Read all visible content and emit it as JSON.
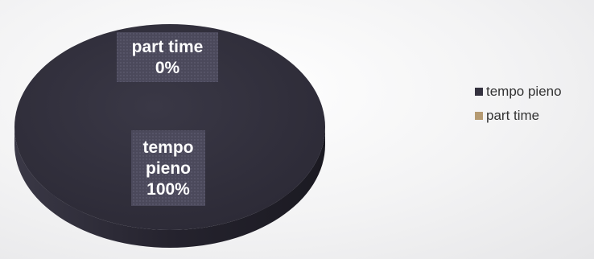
{
  "chart_data": {
    "type": "pie",
    "style": "3d",
    "categories": [
      "tempo pieno",
      "part time"
    ],
    "values": [
      100,
      0
    ],
    "value_unit": "%",
    "data_labels": [
      {
        "category": "tempo pieno",
        "category_text": [
          "tempo",
          "pieno"
        ],
        "value_text": "100%"
      },
      {
        "category": "part time",
        "category_text": [
          "part time"
        ],
        "value_text": "0%"
      }
    ],
    "colors": [
      "#34323f",
      "#b59a72"
    ],
    "legend": {
      "position": "right",
      "entries": [
        "tempo pieno",
        "part time"
      ]
    }
  }
}
